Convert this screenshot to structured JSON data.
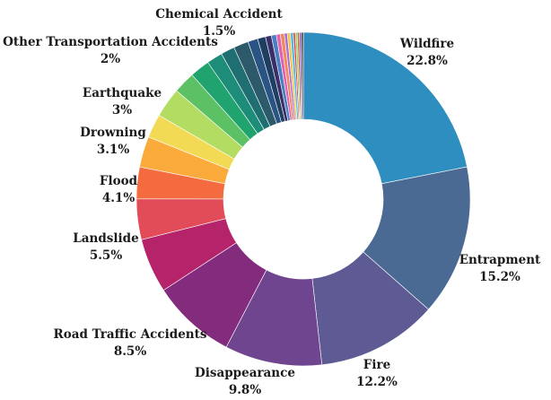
{
  "chart_data": {
    "type": "pie",
    "title": "",
    "slices": [
      {
        "label": "Wildfire",
        "value": 22.8,
        "display": "22.8%",
        "color": "#2f8ec0"
      },
      {
        "label": "Entrapment",
        "value": 15.2,
        "display": "15.2%",
        "color": "#4a6a94"
      },
      {
        "label": "Fire",
        "value": 12.2,
        "display": "12.2%",
        "color": "#5e5b94"
      },
      {
        "label": "Disappearance",
        "value": 9.8,
        "display": "9.8%",
        "color": "#6f4590"
      },
      {
        "label": "Road Traffic Accidents",
        "value": 8.5,
        "display": "8.5%",
        "color": "#832c7e"
      },
      {
        "label": "Landslide",
        "value": 5.5,
        "display": "5.5%",
        "color": "#b5246a"
      },
      {
        "label": "Flood",
        "value": 4.1,
        "display": "4.1%",
        "color": "#e24b58"
      },
      {
        "label": "",
        "value": 3.2,
        "display": "",
        "color": "#f36b3e"
      },
      {
        "label": "Drowning",
        "value": 3.1,
        "display": "3.1%",
        "color": "#fbaa3c"
      },
      {
        "label": "",
        "value": 2.4,
        "display": "",
        "color": "#f2da55"
      },
      {
        "label": "Earthquake",
        "value": 3.0,
        "display": "3%",
        "color": "#b2dc62"
      },
      {
        "label": "",
        "value": 2.2,
        "display": "",
        "color": "#5cc164"
      },
      {
        "label": "Other Transportation Accidents",
        "value": 2.0,
        "display": "2%",
        "color": "#20a36e"
      },
      {
        "label": "",
        "value": 1.6,
        "display": "",
        "color": "#1d8c78"
      },
      {
        "label": "",
        "value": 1.4,
        "display": "",
        "color": "#1f6f72"
      },
      {
        "label": "Chemical Accident",
        "value": 1.5,
        "display": "1.5%",
        "color": "#2d5a6a"
      },
      {
        "label": "",
        "value": 1.0,
        "display": "",
        "color": "#2a5484"
      },
      {
        "label": "",
        "value": 0.8,
        "display": "",
        "color": "#1e3f62"
      },
      {
        "label": "",
        "value": 0.6,
        "display": "",
        "color": "#3a2f6a"
      },
      {
        "label": "",
        "value": 0.5,
        "display": "",
        "color": "#4a7fc0"
      },
      {
        "label": "",
        "value": 0.4,
        "display": "",
        "color": "#e55fb0"
      },
      {
        "label": "",
        "value": 0.4,
        "display": "",
        "color": "#f08a5c"
      },
      {
        "label": "",
        "value": 0.3,
        "display": "",
        "color": "#a66fd8"
      },
      {
        "label": "",
        "value": 0.3,
        "display": "",
        "color": "#f4c542"
      },
      {
        "label": "",
        "value": 0.3,
        "display": "",
        "color": "#55b8e0"
      },
      {
        "label": "",
        "value": 0.2,
        "display": "",
        "color": "#e03a3a"
      },
      {
        "label": "",
        "value": 0.2,
        "display": "",
        "color": "#8bd45a"
      },
      {
        "label": "",
        "value": 0.2,
        "display": "",
        "color": "#c06040"
      },
      {
        "label": "",
        "value": 0.2,
        "display": "",
        "color": "#7a5cc0"
      },
      {
        "label": "",
        "value": 0.2,
        "display": "",
        "color": "#444444"
      }
    ]
  }
}
